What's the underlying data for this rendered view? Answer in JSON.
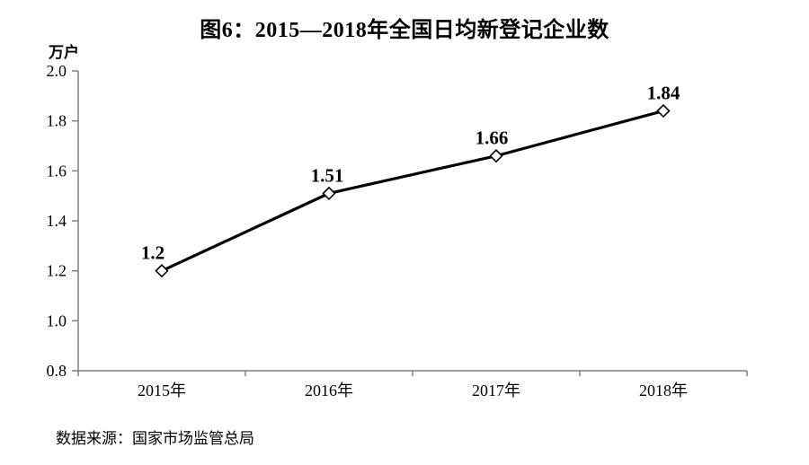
{
  "page": {
    "title": "图6：2015—2018年全国日均新登记企业数",
    "source": "数据来源：国家市场监管总局"
  },
  "chart_data": {
    "type": "line",
    "title": "图6：2015—2018年全国日均新登记企业数",
    "unit_label": "万户",
    "categories": [
      "2015年",
      "2016年",
      "2017年",
      "2018年"
    ],
    "series": [
      {
        "name": "日均新登记企业数",
        "values": [
          1.2,
          1.51,
          1.66,
          1.84
        ],
        "value_labels": [
          "1.2",
          "1.51",
          "1.66",
          "1.84"
        ]
      }
    ],
    "xlabel": "",
    "ylabel": "万户",
    "ylim": [
      0.8,
      2.0
    ],
    "ytick_step": 0.2,
    "ytick_labels": [
      "2.0",
      "1.8",
      "1.6",
      "1.4",
      "1.2",
      "1.0",
      "0.8"
    ],
    "grid": false,
    "legend": "none",
    "marker": "open-diamond",
    "line_color": "#000000",
    "axis_color": "#7f7f7f",
    "label_color": "#000000",
    "source": "数据来源：国家市场监管总局"
  }
}
